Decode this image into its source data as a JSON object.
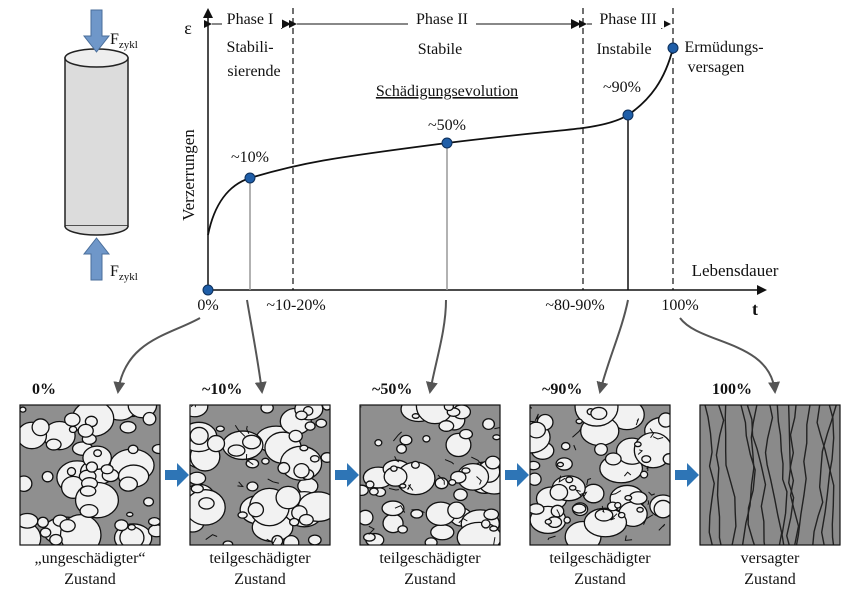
{
  "specimen": {
    "force_top": {
      "symbol": "F",
      "subscript": "zykl"
    },
    "force_bottom": {
      "symbol": "F",
      "subscript": "zykl"
    }
  },
  "axes": {
    "y_symbol": "ε",
    "y_label": "Verzerrungen",
    "x_label": "Lebensdauer",
    "x_symbol": "t"
  },
  "phases": [
    {
      "name": "Phase I",
      "description": [
        "Stabili-",
        "sierende"
      ]
    },
    {
      "name": "Phase II",
      "description": [
        "Stabile"
      ]
    },
    {
      "name": "Phase III",
      "description": [
        "Instabile"
      ]
    }
  ],
  "failure_label": [
    "Ermüdungs-",
    "versagen"
  ],
  "curve_title": "Schädigungsevolution",
  "point_labels": [
    "~10%",
    "~50%",
    "~90%"
  ],
  "x_labels": [
    "0%",
    "~10-20%",
    "~80-90%",
    "100%"
  ],
  "states": [
    {
      "label": "0%",
      "caption": [
        "„ungeschädigter“",
        "Zustand"
      ]
    },
    {
      "label": "~10%",
      "caption": [
        "teilgeschädigter",
        "Zustand"
      ]
    },
    {
      "label": "~50%",
      "caption": [
        "teilgeschädigter",
        "Zustand"
      ]
    },
    {
      "label": "~90%",
      "caption": [
        "teilgeschädigter",
        "Zustand"
      ]
    },
    {
      "label": "100%",
      "caption": [
        "versagter",
        "Zustand"
      ]
    }
  ]
}
